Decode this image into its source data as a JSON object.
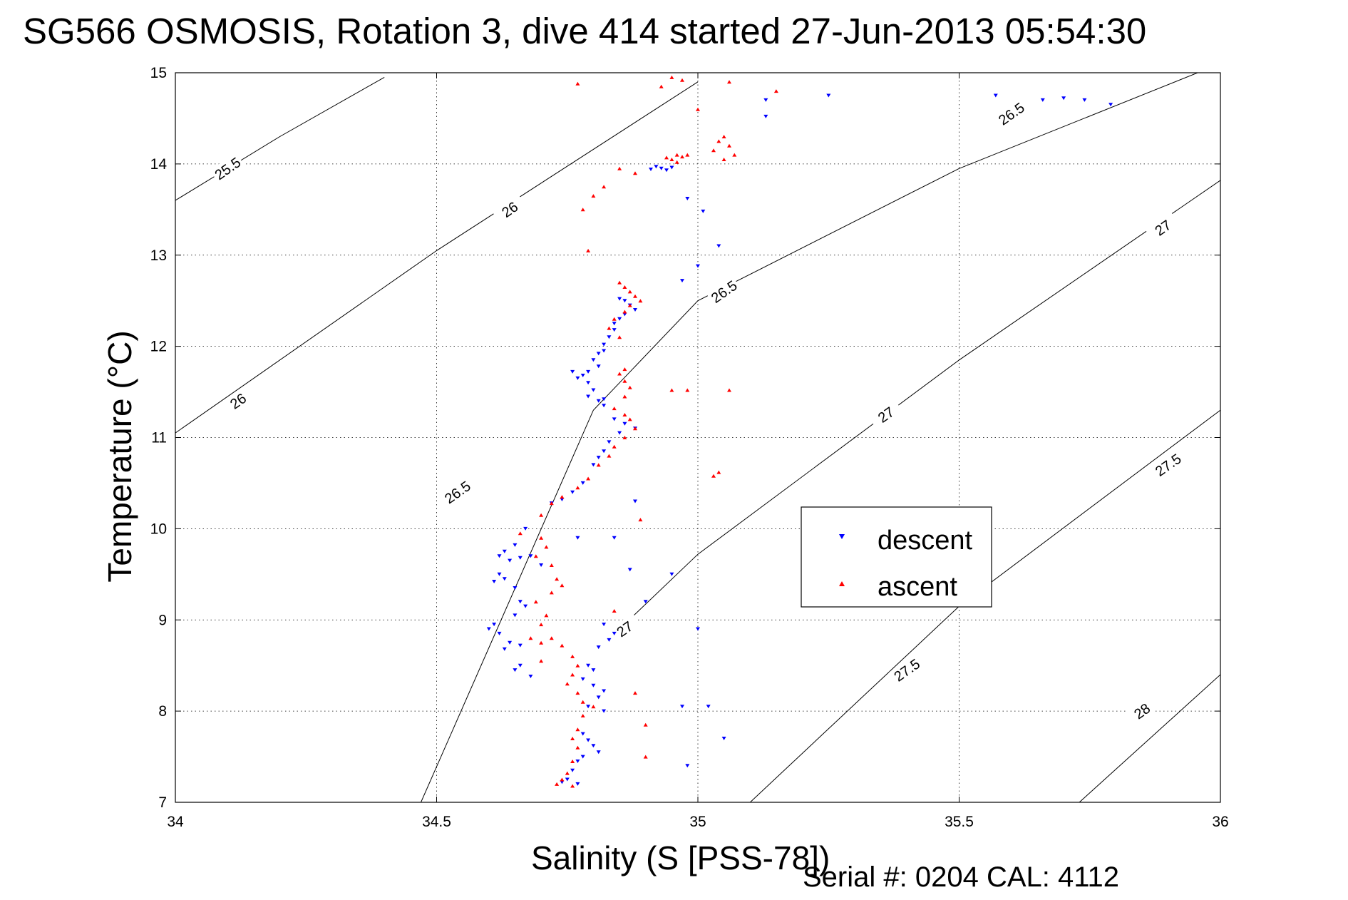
{
  "title": "SG566 OSMOSIS, Rotation 3, dive 414 started 27-Jun-2013 05:54:30",
  "serial_text": "Serial #: 0204  CAL: 4112",
  "colors": {
    "descent": "#0000ff",
    "ascent": "#ff0000",
    "contour": "#000000",
    "grid": "#000000"
  },
  "chart_data": {
    "type": "scatter",
    "xlabel": "Salinity (S [PSS-78])",
    "ylabel": "Temperature (°C)",
    "xlim": [
      34,
      36
    ],
    "ylim": [
      7,
      15
    ],
    "x_ticks": [
      "34",
      "34.5",
      "35",
      "35.5",
      "36"
    ],
    "y_ticks": [
      "7",
      "8",
      "9",
      "10",
      "11",
      "12",
      "13",
      "14",
      "15"
    ],
    "grid": true,
    "legend": {
      "placement": "center-right",
      "entries": [
        {
          "name": "descent",
          "marker": "down-triangle",
          "color": "#0000ff"
        },
        {
          "name": "ascent",
          "marker": "up-triangle",
          "color": "#ff0000"
        }
      ]
    },
    "density_contours": [
      {
        "label": "25.5",
        "points": [
          [
            34.0,
            13.6
          ],
          [
            34.2,
            14.3
          ],
          [
            34.4,
            14.95
          ]
        ]
      },
      {
        "label": "26",
        "points": [
          [
            34.0,
            11.05
          ],
          [
            34.5,
            13.05
          ],
          [
            35.0,
            14.9
          ]
        ]
      },
      {
        "label": "26.5",
        "points": [
          [
            34.47,
            7.0
          ],
          [
            34.8,
            11.3
          ],
          [
            35.0,
            12.5
          ],
          [
            35.5,
            13.95
          ],
          [
            36.0,
            15.1
          ]
        ]
      },
      {
        "label": "27",
        "points": [
          [
            34.85,
            8.9
          ],
          [
            35.0,
            9.72
          ],
          [
            35.5,
            11.85
          ],
          [
            36.0,
            13.82
          ]
        ]
      },
      {
        "label": "27.5",
        "points": [
          [
            35.1,
            7.0
          ],
          [
            35.5,
            9.15
          ],
          [
            36.0,
            11.3
          ]
        ]
      },
      {
        "label": "28",
        "points": [
          [
            35.73,
            7.0
          ],
          [
            36.0,
            8.4
          ]
        ]
      }
    ],
    "contour_labels": [
      {
        "text": "25.5",
        "at": [
          34.1,
          13.95
        ]
      },
      {
        "text": "26",
        "at": [
          34.64,
          13.5
        ]
      },
      {
        "text": "26",
        "at": [
          34.12,
          11.4
        ]
      },
      {
        "text": "26.5",
        "at": [
          34.54,
          10.4
        ]
      },
      {
        "text": "26.5",
        "at": [
          35.05,
          12.6
        ]
      },
      {
        "text": "26.5",
        "at": [
          35.6,
          14.55
        ]
      },
      {
        "text": "27",
        "at": [
          35.36,
          11.25
        ]
      },
      {
        "text": "27",
        "at": [
          34.86,
          8.9
        ]
      },
      {
        "text": "27",
        "at": [
          35.89,
          13.3
        ]
      },
      {
        "text": "27.5",
        "at": [
          35.4,
          8.45
        ]
      },
      {
        "text": "27.5",
        "at": [
          35.9,
          10.7
        ]
      },
      {
        "text": "28",
        "at": [
          35.85,
          8.0
        ]
      }
    ],
    "series": [
      {
        "name": "descent",
        "marker": "down-triangle",
        "points": [
          [
            35.25,
            14.75
          ],
          [
            35.13,
            14.7
          ],
          [
            35.13,
            14.52
          ],
          [
            35.57,
            14.75
          ],
          [
            35.66,
            14.7
          ],
          [
            35.7,
            14.72
          ],
          [
            35.74,
            14.7
          ],
          [
            35.79,
            14.65
          ],
          [
            34.92,
            13.97
          ],
          [
            34.93,
            13.95
          ],
          [
            34.94,
            13.93
          ],
          [
            34.95,
            13.96
          ],
          [
            34.91,
            13.94
          ],
          [
            34.98,
            13.62
          ],
          [
            35.01,
            13.48
          ],
          [
            35.04,
            13.1
          ],
          [
            35.0,
            12.88
          ],
          [
            34.97,
            12.72
          ],
          [
            34.85,
            12.52
          ],
          [
            34.86,
            12.5
          ],
          [
            34.87,
            12.45
          ],
          [
            34.88,
            12.4
          ],
          [
            34.86,
            12.35
          ],
          [
            34.85,
            12.3
          ],
          [
            34.84,
            12.25
          ],
          [
            34.84,
            12.18
          ],
          [
            34.83,
            12.1
          ],
          [
            34.82,
            12.02
          ],
          [
            34.82,
            11.95
          ],
          [
            34.81,
            11.92
          ],
          [
            34.8,
            11.85
          ],
          [
            34.81,
            11.78
          ],
          [
            34.79,
            11.72
          ],
          [
            34.78,
            11.68
          ],
          [
            34.76,
            11.72
          ],
          [
            34.77,
            11.65
          ],
          [
            34.79,
            11.6
          ],
          [
            34.8,
            11.52
          ],
          [
            34.79,
            11.45
          ],
          [
            34.81,
            11.4
          ],
          [
            34.82,
            11.42
          ],
          [
            34.82,
            11.35
          ],
          [
            34.84,
            11.2
          ],
          [
            34.86,
            11.15
          ],
          [
            34.88,
            11.1
          ],
          [
            34.85,
            11.05
          ],
          [
            34.83,
            10.95
          ],
          [
            34.82,
            10.85
          ],
          [
            34.81,
            10.78
          ],
          [
            34.8,
            10.7
          ],
          [
            34.78,
            10.5
          ],
          [
            34.76,
            10.4
          ],
          [
            34.74,
            10.32
          ],
          [
            34.72,
            10.28
          ],
          [
            34.67,
            10.0
          ],
          [
            34.65,
            9.82
          ],
          [
            34.63,
            9.75
          ],
          [
            34.62,
            9.7
          ],
          [
            34.64,
            9.65
          ],
          [
            34.66,
            9.68
          ],
          [
            34.68,
            9.7
          ],
          [
            34.7,
            9.6
          ],
          [
            34.62,
            9.5
          ],
          [
            34.63,
            9.45
          ],
          [
            34.61,
            9.42
          ],
          [
            34.65,
            9.35
          ],
          [
            34.66,
            9.2
          ],
          [
            34.67,
            9.15
          ],
          [
            34.65,
            9.05
          ],
          [
            34.61,
            8.95
          ],
          [
            34.6,
            8.9
          ],
          [
            34.62,
            8.85
          ],
          [
            34.64,
            8.75
          ],
          [
            34.66,
            8.72
          ],
          [
            34.63,
            8.68
          ],
          [
            34.65,
            8.45
          ],
          [
            34.66,
            8.5
          ],
          [
            34.68,
            8.38
          ],
          [
            34.82,
            8.95
          ],
          [
            34.84,
            8.85
          ],
          [
            34.83,
            8.78
          ],
          [
            34.81,
            8.7
          ],
          [
            34.79,
            8.5
          ],
          [
            34.8,
            8.45
          ],
          [
            34.78,
            8.35
          ],
          [
            34.8,
            8.28
          ],
          [
            34.82,
            8.22
          ],
          [
            34.81,
            8.15
          ],
          [
            34.79,
            8.05
          ],
          [
            34.82,
            8.0
          ],
          [
            34.78,
            7.75
          ],
          [
            34.79,
            7.68
          ],
          [
            34.8,
            7.62
          ],
          [
            34.81,
            7.55
          ],
          [
            34.78,
            7.5
          ],
          [
            34.77,
            7.45
          ],
          [
            34.76,
            7.35
          ],
          [
            34.75,
            7.25
          ],
          [
            34.74,
            7.22
          ],
          [
            34.77,
            7.2
          ],
          [
            34.88,
            10.3
          ],
          [
            34.95,
            9.5
          ],
          [
            34.9,
            9.2
          ],
          [
            35.0,
            8.9
          ],
          [
            34.97,
            8.05
          ],
          [
            35.05,
            7.7
          ],
          [
            34.98,
            7.4
          ],
          [
            35.02,
            8.05
          ],
          [
            34.87,
            9.55
          ],
          [
            34.84,
            9.9
          ],
          [
            34.77,
            9.9
          ]
        ]
      },
      {
        "name": "ascent",
        "marker": "up-triangle",
        "points": [
          [
            34.95,
            14.95
          ],
          [
            34.97,
            14.92
          ],
          [
            34.93,
            14.85
          ],
          [
            35.06,
            14.9
          ],
          [
            35.15,
            14.8
          ],
          [
            34.77,
            14.88
          ],
          [
            35.0,
            14.6
          ],
          [
            35.05,
            14.3
          ],
          [
            35.04,
            14.25
          ],
          [
            35.06,
            14.2
          ],
          [
            35.03,
            14.15
          ],
          [
            35.07,
            14.1
          ],
          [
            35.05,
            14.05
          ],
          [
            34.96,
            14.1
          ],
          [
            34.97,
            14.08
          ],
          [
            34.98,
            14.1
          ],
          [
            34.95,
            14.05
          ],
          [
            34.96,
            14.02
          ],
          [
            34.94,
            14.07
          ],
          [
            34.85,
            13.95
          ],
          [
            34.88,
            13.9
          ],
          [
            34.82,
            13.75
          ],
          [
            34.8,
            13.65
          ],
          [
            34.78,
            13.5
          ],
          [
            34.79,
            13.05
          ],
          [
            34.85,
            12.7
          ],
          [
            34.86,
            12.65
          ],
          [
            34.87,
            12.6
          ],
          [
            34.88,
            12.55
          ],
          [
            34.89,
            12.5
          ],
          [
            34.87,
            12.45
          ],
          [
            34.86,
            12.38
          ],
          [
            34.84,
            12.3
          ],
          [
            34.83,
            12.2
          ],
          [
            34.85,
            12.1
          ],
          [
            34.86,
            11.75
          ],
          [
            34.85,
            11.7
          ],
          [
            34.86,
            11.62
          ],
          [
            34.87,
            11.55
          ],
          [
            34.86,
            11.45
          ],
          [
            34.84,
            11.32
          ],
          [
            34.86,
            11.25
          ],
          [
            34.87,
            11.2
          ],
          [
            34.88,
            11.1
          ],
          [
            34.86,
            11.0
          ],
          [
            34.84,
            10.9
          ],
          [
            34.83,
            10.8
          ],
          [
            34.81,
            10.7
          ],
          [
            34.79,
            10.55
          ],
          [
            34.77,
            10.45
          ],
          [
            34.74,
            10.35
          ],
          [
            34.72,
            10.28
          ],
          [
            34.7,
            10.15
          ],
          [
            34.7,
            9.9
          ],
          [
            34.71,
            9.8
          ],
          [
            34.69,
            9.7
          ],
          [
            34.72,
            9.6
          ],
          [
            34.73,
            9.45
          ],
          [
            34.74,
            9.38
          ],
          [
            34.72,
            9.3
          ],
          [
            34.69,
            9.2
          ],
          [
            34.71,
            9.05
          ],
          [
            34.7,
            8.95
          ],
          [
            34.68,
            8.8
          ],
          [
            34.7,
            8.75
          ],
          [
            34.72,
            8.8
          ],
          [
            34.74,
            8.72
          ],
          [
            34.76,
            8.6
          ],
          [
            34.77,
            8.5
          ],
          [
            34.76,
            8.4
          ],
          [
            34.75,
            8.3
          ],
          [
            34.77,
            8.2
          ],
          [
            34.78,
            8.1
          ],
          [
            34.8,
            8.05
          ],
          [
            34.78,
            7.95
          ],
          [
            34.77,
            7.8
          ],
          [
            34.76,
            7.7
          ],
          [
            34.77,
            7.6
          ],
          [
            34.76,
            7.45
          ],
          [
            34.75,
            7.32
          ],
          [
            34.74,
            7.25
          ],
          [
            34.73,
            7.2
          ],
          [
            34.76,
            7.18
          ],
          [
            34.95,
            11.52
          ],
          [
            34.98,
            11.52
          ],
          [
            35.06,
            11.52
          ],
          [
            35.04,
            10.62
          ],
          [
            35.03,
            10.58
          ],
          [
            34.89,
            10.1
          ],
          [
            34.84,
            9.1
          ],
          [
            34.9,
            7.85
          ],
          [
            34.9,
            7.5
          ],
          [
            34.88,
            8.2
          ],
          [
            34.66,
            9.95
          ],
          [
            34.7,
            8.55
          ]
        ]
      }
    ]
  }
}
